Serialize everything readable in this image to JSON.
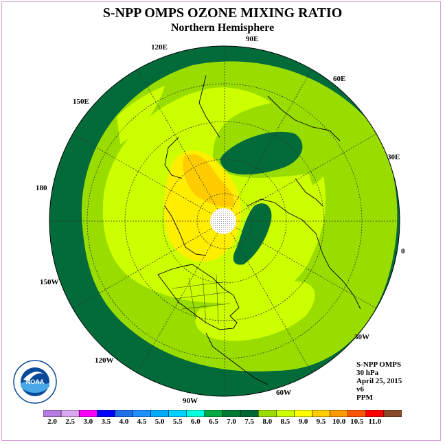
{
  "title": "S-NPP OMPS OZONE MIXING RATIO",
  "subtitle": "Northern Hemisphere",
  "longitude_labels": [
    "90E",
    "60E",
    "30E",
    "0",
    "30W",
    "60W",
    "90W",
    "120W",
    "150W",
    "180",
    "150E",
    "120E"
  ],
  "info": {
    "instrument": "S-NPP OMPS",
    "level": "30 hPa",
    "date": "April 25, 2015",
    "version": "v6",
    "units": "PPM"
  },
  "colorbar": {
    "labels": [
      "2.0",
      "2.5",
      "3.0",
      "3.5",
      "4.0",
      "4.5",
      "5.0",
      "5.5",
      "6.0",
      "6.5",
      "7.0",
      "7.5",
      "8.0",
      "8.5",
      "9.0",
      "9.5",
      "10.0",
      "10.5",
      "11.0"
    ],
    "colors": [
      "#b57be0",
      "#d9a8f0",
      "#ff00ff",
      "#0000ff",
      "#1e6fe8",
      "#1e90ff",
      "#00aaff",
      "#00d2ff",
      "#00ffdd",
      "#00aa44",
      "#007a33",
      "#006633",
      "#99dd00",
      "#ccff00",
      "#ffff00",
      "#ffcc00",
      "#ff9900",
      "#ff5500",
      "#ff0000",
      "#8b4a2b"
    ]
  },
  "logo": {
    "text": "NOAA",
    "ring_text": "NATIONAL OCEANIC AND ATMOSPHERIC ADMINISTRATION · U.S. DEPARTMENT OF COMMERCE"
  },
  "palette": {
    "dark_green": "#036a3a",
    "green": "#99dd00",
    "yellow_green": "#ccff00",
    "yellow": "#ffee00",
    "orange": "#ffcc00"
  }
}
